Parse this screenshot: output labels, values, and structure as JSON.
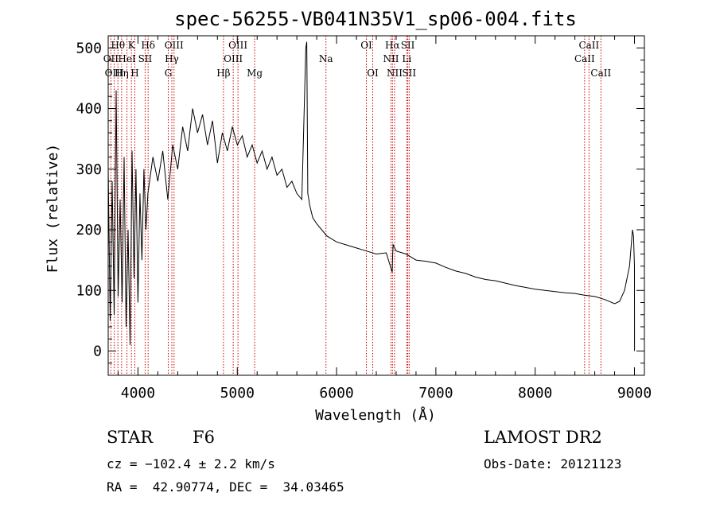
{
  "chart_data": {
    "type": "line",
    "title": "spec-56255-VB041N35V1_sp06-004.fits",
    "xlabel": "Wavelength (Å)",
    "ylabel": "Flux (relative)",
    "xlim": [
      3700,
      9100
    ],
    "ylim": [
      -40,
      520
    ],
    "x_ticks": [
      4000,
      5000,
      6000,
      7000,
      8000,
      9000
    ],
    "y_ticks": [
      0,
      100,
      200,
      300,
      400,
      500
    ],
    "x_tick_labels": [
      "4000",
      "5000",
      "6000",
      "7000",
      "8000",
      "9000"
    ],
    "y_tick_labels": [
      "0",
      "100",
      "200",
      "300",
      "400",
      "500"
    ],
    "grid": false,
    "line_color": "#000000",
    "line_marker_color": "#cc0000",
    "series": [
      {
        "x": [
          3700,
          3720,
          3740,
          3760,
          3780,
          3800,
          3820,
          3840,
          3860,
          3880,
          3900,
          3920,
          3940,
          3960,
          3980,
          4000,
          4020,
          4040,
          4060,
          4080,
          4100,
          4150,
          4200,
          4250,
          4300,
          4350,
          4400,
          4450,
          4500,
          4550,
          4600,
          4650,
          4700,
          4750,
          4800,
          4850,
          4900,
          4950,
          5000,
          5050,
          5100,
          5150,
          5200,
          5250,
          5300,
          5350,
          5400,
          5450,
          5500,
          5550,
          5600,
          5650,
          5690,
          5700,
          5710,
          5730,
          5760,
          5800,
          5850,
          5900,
          5950,
          6000,
          6100,
          6200,
          6300,
          6400,
          6500,
          6560,
          6565,
          6570,
          6600,
          6700,
          6800,
          6900,
          7000,
          7100,
          7200,
          7300,
          7400,
          7500,
          7600,
          7700,
          7800,
          7900,
          8000,
          8100,
          8200,
          8300,
          8400,
          8500,
          8600,
          8700,
          8800,
          8850,
          8900,
          8950,
          8980,
          8990,
          9000,
          9001
        ],
        "y": [
          300,
          50,
          280,
          60,
          430,
          90,
          250,
          80,
          320,
          40,
          200,
          10,
          330,
          120,
          300,
          80,
          260,
          150,
          300,
          200,
          260,
          320,
          280,
          330,
          250,
          340,
          300,
          370,
          330,
          400,
          360,
          390,
          340,
          380,
          310,
          360,
          330,
          370,
          340,
          355,
          320,
          340,
          310,
          330,
          300,
          320,
          290,
          300,
          270,
          280,
          260,
          250,
          500,
          510,
          260,
          240,
          220,
          210,
          200,
          190,
          185,
          180,
          175,
          170,
          165,
          160,
          162,
          130,
          160,
          175,
          165,
          160,
          150,
          148,
          145,
          138,
          132,
          128,
          122,
          118,
          116,
          112,
          108,
          105,
          102,
          100,
          98,
          96,
          95,
          92,
          90,
          85,
          78,
          82,
          100,
          140,
          200,
          190,
          140,
          0
        ]
      }
    ],
    "lines": [
      {
        "label": "Hθ",
        "x": 3798,
        "row": 1
      },
      {
        "label": "OII",
        "x": 3727,
        "row": 2
      },
      {
        "label": "OIII",
        "x": 3761,
        "row": 3
      },
      {
        "label": "Hη",
        "x": 3835,
        "row": 3
      },
      {
        "label": "HeI",
        "x": 3889,
        "row": 2
      },
      {
        "label": "K",
        "x": 3934,
        "row": 1
      },
      {
        "label": "H",
        "x": 3968,
        "row": 3
      },
      {
        "label": "SII",
        "x": 4072,
        "row": 2
      },
      {
        "label": "Hδ",
        "x": 4102,
        "row": 1
      },
      {
        "label": "OIII",
        "x": 4363,
        "row": 1
      },
      {
        "label": "Hγ",
        "x": 4341,
        "row": 2
      },
      {
        "label": "G",
        "x": 4305,
        "row": 3
      },
      {
        "label": "Hβ",
        "x": 4861,
        "row": 3
      },
      {
        "label": "OIII",
        "x": 5007,
        "row": 1
      },
      {
        "label": "OIII",
        "x": 4959,
        "row": 2
      },
      {
        "label": "Mg",
        "x": 5175,
        "row": 3
      },
      {
        "label": "Na",
        "x": 5893,
        "row": 2
      },
      {
        "label": "OI",
        "x": 6300,
        "row": 1
      },
      {
        "label": "OI",
        "x": 6364,
        "row": 3
      },
      {
        "label": "Hα",
        "x": 6563,
        "row": 1
      },
      {
        "label": "NII",
        "x": 6548,
        "row": 2
      },
      {
        "label": "NII",
        "x": 6584,
        "row": 3
      },
      {
        "label": "SII",
        "x": 6717,
        "row": 1
      },
      {
        "label": "Li",
        "x": 6707,
        "row": 2
      },
      {
        "label": "SII",
        "x": 6731,
        "row": 3
      },
      {
        "label": "CaII",
        "x": 8542,
        "row": 1
      },
      {
        "label": "CaII",
        "x": 8498,
        "row": 2
      },
      {
        "label": "CaII",
        "x": 8662,
        "row": 3
      }
    ]
  },
  "info": {
    "object_class": "STAR",
    "subclass": "F6",
    "survey": "LAMOST DR2",
    "redshift_line": "cz = −102.4 ± 2.2 km/s",
    "obs_date_line": "Obs-Date: 20121123",
    "coords_line": "RA =  42.90774, DEC =  34.03465"
  }
}
